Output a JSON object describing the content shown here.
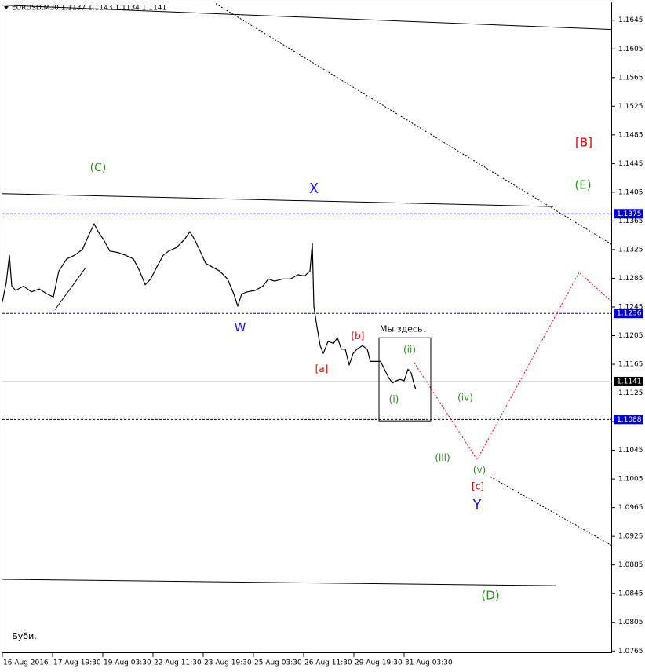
{
  "chart_data": {
    "type": "line",
    "header": "EURUSD,M30  1.1137 1.1143 1.1134 1.1141",
    "color": "#000000",
    "x": [
      0,
      5,
      9,
      12,
      17,
      27,
      37,
      47,
      57,
      65,
      72,
      82,
      92,
      102,
      110,
      117,
      122,
      129,
      137,
      147,
      157,
      167,
      175,
      182,
      189,
      197,
      205,
      212,
      222,
      232,
      239,
      245,
      252,
      259,
      267,
      277,
      287,
      295,
      300,
      305,
      312,
      322,
      332,
      339,
      347,
      357,
      367,
      377,
      385,
      392,
      395,
      397,
      400,
      405,
      409,
      415,
      422,
      427,
      432,
      437,
      442,
      447,
      452,
      459,
      465,
      469,
      475,
      482,
      487,
      492,
      497,
      502,
      507,
      512,
      517,
      521,
      525,
      527
    ],
    "values": [
      1.1252,
      1.1279,
      1.1317,
      1.1274,
      1.1268,
      1.1274,
      1.1266,
      1.127,
      1.1263,
      1.1259,
      1.1295,
      1.1312,
      1.1317,
      1.1325,
      1.1345,
      1.1361,
      1.135,
      1.1339,
      1.1323,
      1.1321,
      1.1317,
      1.1312,
      1.1295,
      1.1276,
      1.1284,
      1.1301,
      1.1317,
      1.1323,
      1.1328,
      1.1339,
      1.135,
      1.1339,
      1.1323,
      1.1306,
      1.1301,
      1.1295,
      1.1284,
      1.1263,
      1.1246,
      1.1263,
      1.1266,
      1.1268,
      1.1274,
      1.1284,
      1.1281,
      1.1284,
      1.1284,
      1.129,
      1.1288,
      1.1295,
      1.1334,
      1.1246,
      1.1224,
      1.1191,
      1.118,
      1.1197,
      1.1194,
      1.1202,
      1.1186,
      1.1186,
      1.1164,
      1.118,
      1.1186,
      1.1191,
      1.1186,
      1.1169,
      1.1169,
      1.1169,
      1.1158,
      1.1147,
      1.1139,
      1.1142,
      1.1144,
      1.1142,
      1.1158,
      1.1153,
      1.1136,
      1.113
    ],
    "xlim": [
      0,
      777
    ],
    "ylim": [
      1.0762,
      1.1671
    ],
    "xticks": [
      {
        "value": 0,
        "label": "16 Aug 2016"
      },
      {
        "value": 64,
        "label": "17 Aug 19:30"
      },
      {
        "value": 128,
        "label": "19 Aug 03:30"
      },
      {
        "value": 192,
        "label": "22 Aug 11:30"
      },
      {
        "value": 256,
        "label": "23 Aug 19:30"
      },
      {
        "value": 320,
        "label": "25 Aug 03:30"
      },
      {
        "value": 384,
        "label": "26 Aug 11:30"
      },
      {
        "value": 448,
        "label": "29 Aug 19:30"
      },
      {
        "value": 512,
        "label": "31 Aug 03:30"
      }
    ],
    "yticks": [
      1.0765,
      1.0805,
      1.0845,
      1.0885,
      1.0925,
      1.0965,
      1.1005,
      1.1045,
      1.1085,
      1.1125,
      1.1165,
      1.1205,
      1.1245,
      1.1285,
      1.1325,
      1.1365,
      1.1405,
      1.1445,
      1.1485,
      1.1525,
      1.1565,
      1.1605,
      1.1645
    ],
    "levels": [
      {
        "value": 1.1375,
        "color": "#0000cc",
        "label_color": "#0000cc",
        "dash": true
      },
      {
        "value": 1.1236,
        "color": "#0000cc",
        "label_color": "#0000cc",
        "dash": true
      },
      {
        "value": 1.1141,
        "color": "#b0b0b0",
        "label_color": "#000000",
        "dash": false
      },
      {
        "value": 1.1088,
        "color": "#000033",
        "label_color": "#0000cc",
        "dash": true
      }
    ],
    "trendlines": [
      {
        "x": [
          0,
          777
        ],
        "y": [
          1.1666,
          1.1632
        ],
        "color": "#000000",
        "dash": false
      },
      {
        "x": [
          272,
          777
        ],
        "y": [
          1.1668,
          1.1332
        ],
        "color": "#000000",
        "dash": true
      },
      {
        "x": [
          0,
          702
        ],
        "y": [
          1.1403,
          1.1385
        ],
        "color": "#000000",
        "dash": false
      },
      {
        "x": [
          0,
          705
        ],
        "y": [
          1.0865,
          1.0856
        ],
        "color": "#000000",
        "dash": false
      },
      {
        "x": [
          67,
          107
        ],
        "y": [
          1.1241,
          1.1301
        ],
        "color": "#000000",
        "dash": false
      },
      {
        "x": [
          525,
          605,
          735,
          777
        ],
        "y": [
          1.1167,
          1.1032,
          1.1293,
          1.1252
        ],
        "color": "#ff0000",
        "dash": true
      },
      {
        "x": [
          622,
          777
        ],
        "y": [
          1.1008,
          1.0912
        ],
        "color": "#000000",
        "dash": true
      }
    ],
    "boxes": [
      {
        "x": [
          480,
          546
        ],
        "y": [
          1.1202,
          1.1086
        ],
        "color": "#000000"
      }
    ],
    "annotations": [
      {
        "text": "(C)",
        "x": 122,
        "y": 1.1439,
        "color": "#2e8b22",
        "fontsize": 14
      },
      {
        "text": "X",
        "x": 397,
        "y": 1.1409,
        "color": "#1a1aff",
        "fontsize": 18
      },
      {
        "text": "W",
        "x": 303,
        "y": 1.1216,
        "color": "#1a1aff",
        "fontsize": 15
      },
      {
        "text": "[a]",
        "x": 407,
        "y": 1.1158,
        "color": "#e00000",
        "fontsize": 12
      },
      {
        "text": "[b]",
        "x": 453,
        "y": 1.1204,
        "color": "#e00000",
        "fontsize": 12
      },
      {
        "text": "Мы здесь.",
        "x": 510,
        "y": 1.1214,
        "color": "#000000",
        "fontsize": 11
      },
      {
        "text": "(ii)",
        "x": 519,
        "y": 1.1185,
        "color": "#2e8b22",
        "fontsize": 12
      },
      {
        "text": "(i)",
        "x": 499,
        "y": 1.1116,
        "color": "#2e8b22",
        "fontsize": 12
      },
      {
        "text": "(iv)",
        "x": 590,
        "y": 1.1118,
        "color": "#2e8b22",
        "fontsize": 12
      },
      {
        "text": "(iii)",
        "x": 561,
        "y": 1.1034,
        "color": "#2e8b22",
        "fontsize": 12
      },
      {
        "text": "(v)",
        "x": 608,
        "y": 1.1017,
        "color": "#2e8b22",
        "fontsize": 12
      },
      {
        "text": "[c]",
        "x": 606,
        "y": 1.0994,
        "color": "#e00000",
        "fontsize": 12
      },
      {
        "text": "Y",
        "x": 605,
        "y": 1.0968,
        "color": "#1a1aff",
        "fontsize": 18
      },
      {
        "text": "[B]",
        "x": 741,
        "y": 1.1474,
        "color": "#e00000",
        "fontsize": 15
      },
      {
        "text": "(E)",
        "x": 740,
        "y": 1.1415,
        "color": "#2e8b22",
        "fontsize": 15
      },
      {
        "text": "(D)",
        "x": 622,
        "y": 1.0842,
        "color": "#2e8b22",
        "fontsize": 15
      },
      {
        "text": "Буби.",
        "x": 28,
        "y": 1.0785,
        "color": "#000000",
        "fontsize": 11
      }
    ]
  }
}
